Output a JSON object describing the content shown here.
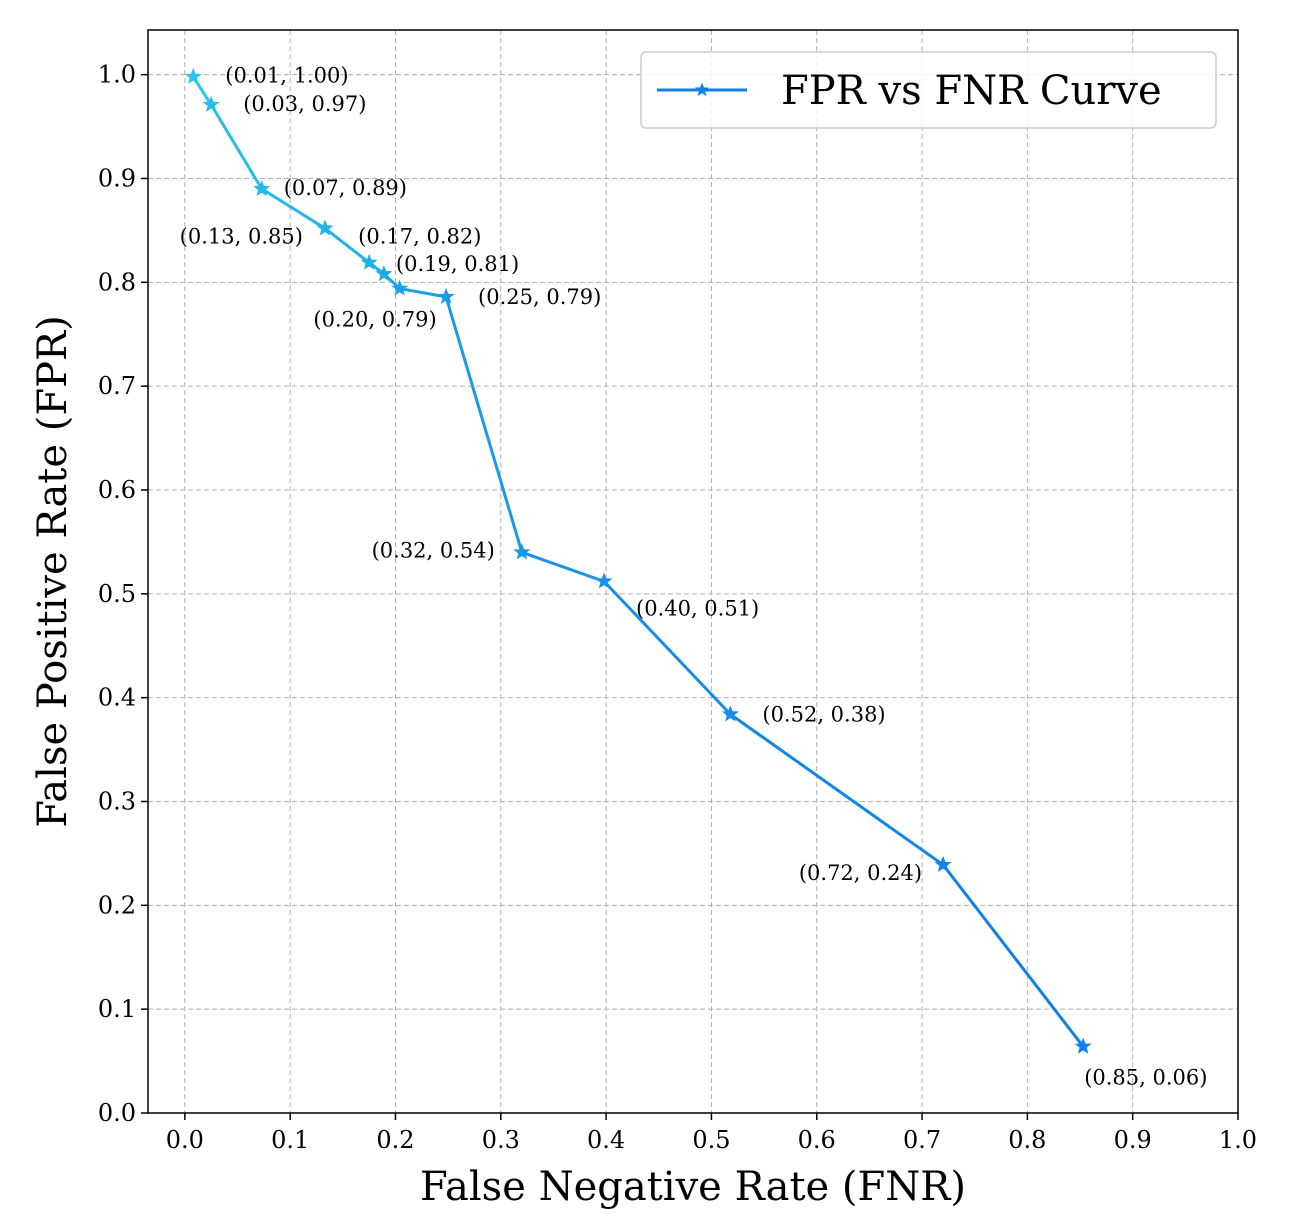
{
  "chart_data": {
    "type": "line",
    "xlabel": "False Negative Rate (FNR)",
    "ylabel": "False Positive Rate (FPR)",
    "xlim": [
      -0.035,
      1.0
    ],
    "ylim": [
      0.0,
      1.043
    ],
    "xticks": [
      "0.0",
      "0.1",
      "0.2",
      "0.3",
      "0.4",
      "0.5",
      "0.6",
      "0.7",
      "0.8",
      "0.9",
      "1.0"
    ],
    "yticks": [
      "0.0",
      "0.1",
      "0.2",
      "0.3",
      "0.4",
      "0.5",
      "0.6",
      "0.7",
      "0.8",
      "0.9",
      "1.0"
    ],
    "grid": true,
    "legend": {
      "position": "top-right",
      "entries": [
        "FPR vs FNR Curve"
      ]
    },
    "colors": {
      "start": "#26c6ea",
      "end": "#1080e8"
    },
    "series": [
      {
        "name": "FPR vs FNR Curve",
        "marker": "star",
        "points": [
          {
            "x": 0.008,
            "y": 0.998,
            "label": "(0.01, 1.00)"
          },
          {
            "x": 0.025,
            "y": 0.971,
            "label": "(0.03, 0.97)"
          },
          {
            "x": 0.073,
            "y": 0.89,
            "label": "(0.07, 0.89)"
          },
          {
            "x": 0.133,
            "y": 0.852,
            "label": "(0.13, 0.85)"
          },
          {
            "x": 0.175,
            "y": 0.819,
            "label": "(0.17, 0.82)"
          },
          {
            "x": 0.189,
            "y": 0.808,
            "label": "(0.19, 0.81)"
          },
          {
            "x": 0.204,
            "y": 0.794,
            "label": "(0.20, 0.79)"
          },
          {
            "x": 0.248,
            "y": 0.786,
            "label": "(0.25, 0.79)"
          },
          {
            "x": 0.32,
            "y": 0.54,
            "label": "(0.32, 0.54)"
          },
          {
            "x": 0.398,
            "y": 0.512,
            "label": "(0.40, 0.51)"
          },
          {
            "x": 0.518,
            "y": 0.384,
            "label": "(0.52, 0.38)"
          },
          {
            "x": 0.72,
            "y": 0.239,
            "label": "(0.72, 0.24)"
          },
          {
            "x": 0.853,
            "y": 0.064,
            "label": "(0.85, 0.06)"
          }
        ]
      }
    ]
  }
}
